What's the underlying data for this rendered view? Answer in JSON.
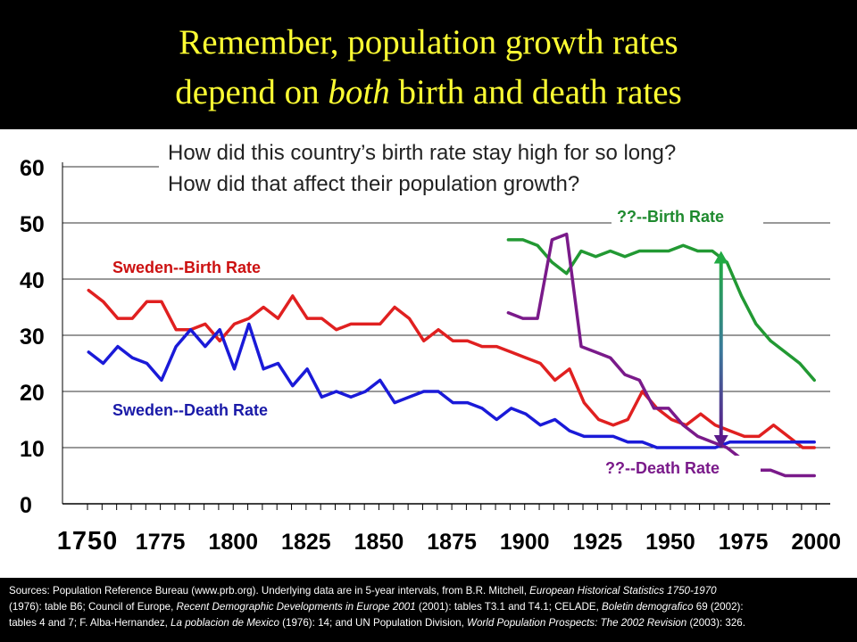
{
  "title": {
    "line1": "Remember, population growth rates",
    "line2_pre": "depend on ",
    "line2_em": "both",
    "line2_post": " birth and death rates"
  },
  "questions": [
    "How did this country’s birth rate stay high for so long?",
    "How did that affect their population growth?"
  ],
  "colors": {
    "sweden_birth": "#e02020",
    "sweden_death": "#1a1ad8",
    "other_birth": "#229933",
    "other_death": "#7a1a8a"
  },
  "chart_data": {
    "type": "line",
    "x_ticks": [
      "1750",
      "1775",
      "1800",
      "1825",
      "1850",
      "1875",
      "1900",
      "1925",
      "1950",
      "1975",
      "2000"
    ],
    "x_tick_values": [
      1750,
      1775,
      1800,
      1825,
      1850,
      1875,
      1900,
      1925,
      1950,
      1975,
      2000
    ],
    "y_ticks": [
      "0",
      "10",
      "20",
      "30",
      "40",
      "50",
      "60"
    ],
    "xlim": [
      1750,
      2003
    ],
    "ylim": [
      0,
      60
    ],
    "grid": true,
    "series": [
      {
        "name": "Sweden--Birth Rate",
        "color": "#e02020",
        "x": [
          1751,
          1756,
          1761,
          1766,
          1771,
          1776,
          1781,
          1786,
          1791,
          1796,
          1801,
          1806,
          1811,
          1816,
          1821,
          1826,
          1831,
          1836,
          1841,
          1846,
          1851,
          1856,
          1861,
          1866,
          1871,
          1876,
          1881,
          1886,
          1891,
          1896,
          1901,
          1906,
          1911,
          1916,
          1921,
          1926,
          1931,
          1936,
          1941,
          1946,
          1951,
          1956,
          1961,
          1966,
          1971,
          1976,
          1981,
          1986,
          1991,
          1996,
          2000
        ],
        "y": [
          38,
          36,
          33,
          33,
          36,
          36,
          31,
          31,
          32,
          29,
          32,
          33,
          35,
          33,
          37,
          33,
          33,
          31,
          32,
          32,
          32,
          35,
          33,
          29,
          31,
          29,
          29,
          28,
          28,
          27,
          26,
          25,
          22,
          24,
          18,
          15,
          14,
          15,
          20,
          17,
          15,
          14,
          16,
          14,
          13,
          12,
          12,
          14,
          12,
          10,
          10
        ]
      },
      {
        "name": "Sweden--Death Rate",
        "color": "#1a1ad8",
        "x": [
          1751,
          1756,
          1761,
          1766,
          1771,
          1776,
          1781,
          1786,
          1791,
          1796,
          1801,
          1806,
          1811,
          1816,
          1821,
          1826,
          1831,
          1836,
          1841,
          1846,
          1851,
          1856,
          1861,
          1866,
          1871,
          1876,
          1881,
          1886,
          1891,
          1896,
          1901,
          1906,
          1911,
          1916,
          1921,
          1926,
          1931,
          1936,
          1941,
          1946,
          1951,
          1956,
          1961,
          1966,
          1971,
          1976,
          1981,
          1986,
          1991,
          1996,
          2000
        ],
        "y": [
          27,
          25,
          28,
          26,
          25,
          22,
          28,
          31,
          28,
          31,
          24,
          32,
          24,
          25,
          21,
          24,
          19,
          20,
          19,
          20,
          22,
          18,
          19,
          20,
          20,
          18,
          18,
          17,
          15,
          17,
          16,
          14,
          15,
          13,
          12,
          12,
          12,
          11,
          11,
          10,
          10,
          10,
          10,
          10,
          11,
          11,
          11,
          11,
          11,
          11,
          11
        ]
      },
      {
        "name": "??--Birth Rate",
        "color": "#229933",
        "x": [
          1895,
          1900,
          1905,
          1910,
          1915,
          1920,
          1925,
          1930,
          1935,
          1940,
          1945,
          1950,
          1955,
          1960,
          1965,
          1970,
          1975,
          1980,
          1985,
          1990,
          1995,
          2000
        ],
        "y": [
          47,
          47,
          46,
          43,
          41,
          45,
          44,
          45,
          44,
          45,
          45,
          45,
          46,
          45,
          45,
          43,
          37,
          32,
          29,
          27,
          25,
          22
        ]
      },
      {
        "name": "??--Death Rate",
        "color": "#7a1a8a",
        "x": [
          1895,
          1900,
          1905,
          1910,
          1915,
          1920,
          1925,
          1930,
          1935,
          1940,
          1945,
          1950,
          1955,
          1960,
          1965,
          1970,
          1975,
          1980,
          1985,
          1990,
          1995,
          2000
        ],
        "y": [
          34,
          33,
          33,
          47,
          48,
          28,
          27,
          26,
          23,
          22,
          17,
          17,
          14,
          12,
          11,
          10,
          8,
          6,
          6,
          5,
          5,
          5
        ]
      }
    ],
    "annotations": [
      {
        "text": "Sweden--Birth Rate",
        "color": "#cc1111"
      },
      {
        "text": "Sweden--Death Rate",
        "color": "#1a1aa8"
      },
      {
        "text": "??--Birth Rate",
        "color": "#1e8a2e"
      },
      {
        "text": "??--Death Rate",
        "color": "#7a1a8a"
      }
    ],
    "arrow": {
      "x": 1968,
      "y_from": 10,
      "y_to": 45
    }
  },
  "sources": {
    "line1_a": "Sources:  Population Reference Bureau (www.prb.org).  Underlying data are in 5-year intervals, from B.R. Mitchell, ",
    "line1_b": "European Historical Statistics 1750-1970",
    "line2_a": "(1976): table B6; Council of Europe, ",
    "line2_b": "Recent Demographic Developments in Europe 2001",
    "line2_c": " (2001): tables T3.1 and T4.1; CELADE, ",
    "line2_d": "Boletin demografico",
    "line2_e": " 69 (2002):",
    "line3_a": "tables 4 and 7; F. Alba-Hernandez, ",
    "line3_b": "La poblacion de Mexico",
    "line3_c": " (1976): 14; and UN Population Division, ",
    "line3_d": "World Population Prospects: The 2002 Revision",
    "line3_e": " (2003): 326."
  }
}
